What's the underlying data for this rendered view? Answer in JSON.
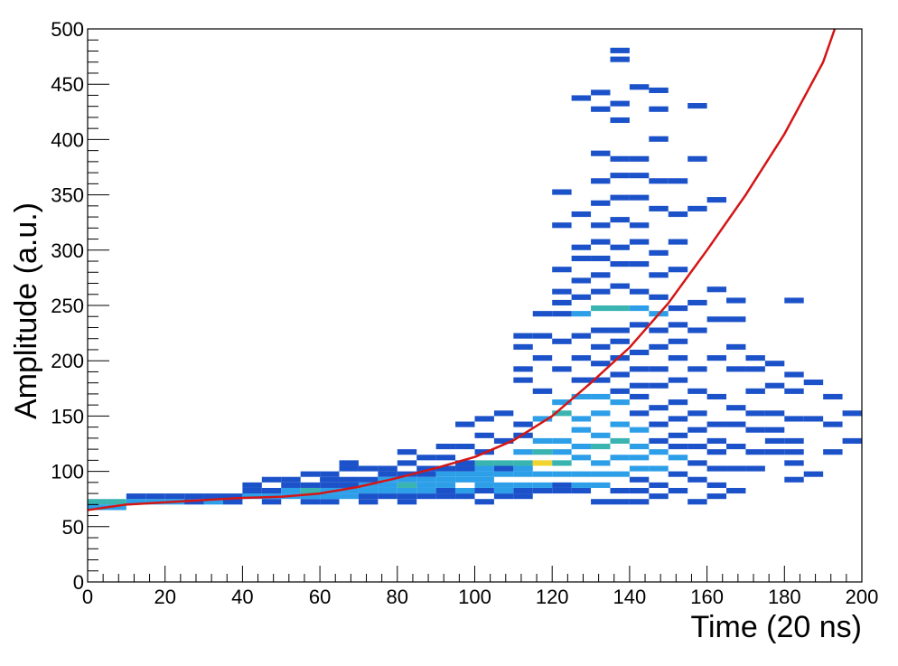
{
  "chart_data": {
    "type": "heatmap",
    "xlabel": "Time (20 ns)",
    "ylabel": "Amplitude (a.u.)",
    "xlim": [
      0,
      200
    ],
    "ylim": [
      0,
      500
    ],
    "x_ticks": [
      0,
      20,
      40,
      60,
      80,
      100,
      120,
      140,
      160,
      180,
      200
    ],
    "y_ticks": [
      0,
      50,
      100,
      150,
      200,
      250,
      300,
      350,
      400,
      450,
      500
    ],
    "bin_width_x": 5,
    "bin_width_y": 5,
    "colors": {
      "low": "#1c52c9",
      "mid": "#2d9ee8",
      "teal": "#3ab4b0",
      "high": "#c8d34a",
      "peak": "#f1d430",
      "fit": "#d41515"
    },
    "fit_curve": {
      "description": "",
      "points": [
        [
          0,
          65
        ],
        [
          10,
          70
        ],
        [
          20,
          72
        ],
        [
          30,
          74
        ],
        [
          40,
          76
        ],
        [
          50,
          77
        ],
        [
          60,
          80
        ],
        [
          70,
          86
        ],
        [
          80,
          94
        ],
        [
          90,
          103
        ],
        [
          100,
          113
        ],
        [
          110,
          128
        ],
        [
          120,
          150
        ],
        [
          130,
          180
        ],
        [
          140,
          212
        ],
        [
          150,
          252
        ],
        [
          160,
          300
        ],
        [
          170,
          350
        ],
        [
          180,
          405
        ],
        [
          190,
          470
        ],
        [
          193,
          500
        ]
      ]
    },
    "bins": [
      [
        0,
        70,
        3
      ],
      [
        5,
        70,
        3
      ],
      [
        0,
        65,
        2
      ],
      [
        5,
        65,
        2
      ],
      [
        10,
        70,
        2
      ],
      [
        10,
        75,
        1
      ],
      [
        15,
        70,
        2
      ],
      [
        15,
        75,
        1
      ],
      [
        20,
        70,
        2
      ],
      [
        20,
        75,
        1
      ],
      [
        25,
        70,
        1
      ],
      [
        25,
        75,
        1
      ],
      [
        30,
        70,
        2
      ],
      [
        30,
        75,
        1
      ],
      [
        35,
        70,
        1
      ],
      [
        35,
        75,
        1
      ],
      [
        40,
        75,
        2
      ],
      [
        40,
        80,
        1
      ],
      [
        40,
        85,
        1
      ],
      [
        45,
        70,
        1
      ],
      [
        45,
        75,
        2
      ],
      [
        45,
        80,
        1
      ],
      [
        45,
        90,
        1
      ],
      [
        50,
        75,
        2
      ],
      [
        50,
        80,
        2
      ],
      [
        50,
        85,
        1
      ],
      [
        50,
        90,
        1
      ],
      [
        55,
        70,
        1
      ],
      [
        55,
        75,
        2
      ],
      [
        55,
        80,
        3
      ],
      [
        55,
        85,
        1
      ],
      [
        55,
        95,
        1
      ],
      [
        60,
        70,
        1
      ],
      [
        60,
        75,
        2
      ],
      [
        60,
        80,
        2
      ],
      [
        60,
        85,
        1
      ],
      [
        60,
        90,
        1
      ],
      [
        60,
        95,
        1
      ],
      [
        65,
        75,
        2
      ],
      [
        65,
        80,
        2
      ],
      [
        65,
        85,
        1
      ],
      [
        65,
        90,
        1
      ],
      [
        65,
        100,
        1
      ],
      [
        65,
        105,
        1
      ],
      [
        70,
        70,
        1
      ],
      [
        70,
        75,
        1
      ],
      [
        70,
        80,
        2
      ],
      [
        70,
        85,
        2
      ],
      [
        70,
        90,
        1
      ],
      [
        70,
        100,
        1
      ],
      [
        75,
        75,
        1
      ],
      [
        75,
        80,
        2
      ],
      [
        75,
        85,
        2
      ],
      [
        75,
        90,
        2
      ],
      [
        75,
        95,
        1
      ],
      [
        75,
        100,
        1
      ],
      [
        80,
        70,
        1
      ],
      [
        80,
        75,
        1
      ],
      [
        80,
        80,
        2
      ],
      [
        80,
        85,
        3
      ],
      [
        80,
        90,
        2
      ],
      [
        80,
        95,
        1
      ],
      [
        80,
        105,
        1
      ],
      [
        80,
        115,
        1
      ],
      [
        85,
        75,
        1
      ],
      [
        85,
        80,
        2
      ],
      [
        85,
        85,
        2
      ],
      [
        85,
        90,
        2
      ],
      [
        85,
        95,
        1
      ],
      [
        85,
        100,
        1
      ],
      [
        85,
        110,
        1
      ],
      [
        90,
        75,
        1
      ],
      [
        90,
        80,
        1
      ],
      [
        90,
        85,
        2
      ],
      [
        90,
        90,
        2
      ],
      [
        90,
        95,
        2
      ],
      [
        90,
        100,
        1
      ],
      [
        90,
        110,
        1
      ],
      [
        90,
        120,
        1
      ],
      [
        95,
        75,
        1
      ],
      [
        95,
        80,
        2
      ],
      [
        95,
        90,
        2
      ],
      [
        95,
        95,
        2
      ],
      [
        95,
        100,
        1
      ],
      [
        95,
        105,
        1
      ],
      [
        95,
        120,
        1
      ],
      [
        95,
        140,
        1
      ],
      [
        100,
        70,
        1
      ],
      [
        100,
        80,
        1
      ],
      [
        100,
        85,
        2
      ],
      [
        100,
        90,
        2
      ],
      [
        100,
        95,
        2
      ],
      [
        100,
        100,
        2
      ],
      [
        100,
        105,
        3
      ],
      [
        100,
        115,
        1
      ],
      [
        100,
        130,
        1
      ],
      [
        100,
        145,
        1
      ],
      [
        105,
        75,
        1
      ],
      [
        105,
        80,
        2
      ],
      [
        105,
        85,
        2
      ],
      [
        105,
        95,
        2
      ],
      [
        105,
        100,
        1
      ],
      [
        105,
        105,
        3
      ],
      [
        105,
        125,
        1
      ],
      [
        105,
        150,
        1
      ],
      [
        110,
        75,
        1
      ],
      [
        110,
        80,
        1
      ],
      [
        110,
        85,
        2
      ],
      [
        110,
        95,
        2
      ],
      [
        110,
        100,
        2
      ],
      [
        110,
        105,
        3
      ],
      [
        110,
        115,
        2
      ],
      [
        110,
        130,
        1
      ],
      [
        110,
        140,
        1
      ],
      [
        110,
        180,
        1
      ],
      [
        110,
        190,
        1
      ],
      [
        110,
        210,
        1
      ],
      [
        110,
        220,
        1
      ],
      [
        115,
        80,
        1
      ],
      [
        115,
        85,
        2
      ],
      [
        115,
        95,
        2
      ],
      [
        115,
        105,
        4
      ],
      [
        115,
        115,
        3
      ],
      [
        115,
        125,
        2
      ],
      [
        115,
        145,
        2
      ],
      [
        115,
        170,
        1
      ],
      [
        115,
        200,
        1
      ],
      [
        115,
        220,
        1
      ],
      [
        115,
        240,
        1
      ],
      [
        120,
        80,
        1
      ],
      [
        120,
        85,
        1
      ],
      [
        120,
        95,
        2
      ],
      [
        120,
        105,
        3
      ],
      [
        120,
        115,
        2
      ],
      [
        120,
        125,
        2
      ],
      [
        120,
        150,
        3
      ],
      [
        120,
        160,
        2
      ],
      [
        120,
        190,
        1
      ],
      [
        120,
        215,
        1
      ],
      [
        120,
        240,
        1
      ],
      [
        120,
        250,
        1
      ],
      [
        120,
        260,
        1
      ],
      [
        120,
        280,
        1
      ],
      [
        120,
        320,
        1
      ],
      [
        120,
        350,
        1
      ],
      [
        125,
        80,
        1
      ],
      [
        125,
        85,
        2
      ],
      [
        125,
        95,
        2
      ],
      [
        125,
        110,
        2
      ],
      [
        125,
        120,
        2
      ],
      [
        125,
        135,
        2
      ],
      [
        125,
        145,
        2
      ],
      [
        125,
        165,
        2
      ],
      [
        125,
        180,
        1
      ],
      [
        125,
        200,
        1
      ],
      [
        125,
        220,
        1
      ],
      [
        125,
        240,
        2
      ],
      [
        125,
        255,
        1
      ],
      [
        125,
        270,
        1
      ],
      [
        125,
        290,
        1
      ],
      [
        125,
        300,
        1
      ],
      [
        125,
        330,
        1
      ],
      [
        125,
        435,
        1
      ],
      [
        130,
        70,
        1
      ],
      [
        130,
        85,
        2
      ],
      [
        130,
        95,
        2
      ],
      [
        130,
        105,
        2
      ],
      [
        130,
        120,
        3
      ],
      [
        130,
        130,
        2
      ],
      [
        130,
        150,
        2
      ],
      [
        130,
        165,
        2
      ],
      [
        130,
        180,
        1
      ],
      [
        130,
        195,
        1
      ],
      [
        130,
        210,
        1
      ],
      [
        130,
        225,
        1
      ],
      [
        130,
        245,
        3
      ],
      [
        130,
        260,
        1
      ],
      [
        130,
        275,
        1
      ],
      [
        130,
        290,
        1
      ],
      [
        130,
        305,
        1
      ],
      [
        130,
        320,
        1
      ],
      [
        130,
        340,
        1
      ],
      [
        130,
        360,
        1
      ],
      [
        130,
        385,
        1
      ],
      [
        130,
        425,
        1
      ],
      [
        130,
        440,
        1
      ],
      [
        135,
        70,
        1
      ],
      [
        135,
        80,
        1
      ],
      [
        135,
        95,
        2
      ],
      [
        135,
        110,
        2
      ],
      [
        135,
        125,
        3
      ],
      [
        135,
        140,
        2
      ],
      [
        135,
        160,
        2
      ],
      [
        135,
        170,
        1
      ],
      [
        135,
        185,
        1
      ],
      [
        135,
        200,
        1
      ],
      [
        135,
        215,
        1
      ],
      [
        135,
        225,
        1
      ],
      [
        135,
        245,
        3
      ],
      [
        135,
        265,
        1
      ],
      [
        135,
        285,
        1
      ],
      [
        135,
        300,
        1
      ],
      [
        135,
        325,
        1
      ],
      [
        135,
        345,
        1
      ],
      [
        135,
        365,
        1
      ],
      [
        135,
        380,
        1
      ],
      [
        135,
        415,
        1
      ],
      [
        135,
        430,
        1
      ],
      [
        135,
        470,
        1
      ],
      [
        135,
        478,
        1
      ],
      [
        140,
        70,
        1
      ],
      [
        140,
        80,
        1
      ],
      [
        140,
        90,
        1
      ],
      [
        140,
        100,
        2
      ],
      [
        140,
        110,
        2
      ],
      [
        140,
        120,
        2
      ],
      [
        140,
        135,
        2
      ],
      [
        140,
        150,
        1
      ],
      [
        140,
        165,
        1
      ],
      [
        140,
        175,
        1
      ],
      [
        140,
        190,
        1
      ],
      [
        140,
        205,
        1
      ],
      [
        140,
        230,
        1
      ],
      [
        140,
        245,
        2
      ],
      [
        140,
        260,
        1
      ],
      [
        140,
        285,
        1
      ],
      [
        140,
        305,
        1
      ],
      [
        140,
        320,
        1
      ],
      [
        140,
        345,
        1
      ],
      [
        140,
        365,
        1
      ],
      [
        140,
        380,
        1
      ],
      [
        140,
        445,
        1
      ],
      [
        145,
        75,
        1
      ],
      [
        145,
        85,
        1
      ],
      [
        145,
        100,
        2
      ],
      [
        145,
        115,
        2
      ],
      [
        145,
        125,
        1
      ],
      [
        145,
        140,
        1
      ],
      [
        145,
        155,
        1
      ],
      [
        145,
        175,
        1
      ],
      [
        145,
        190,
        1
      ],
      [
        145,
        210,
        1
      ],
      [
        145,
        225,
        1
      ],
      [
        145,
        240,
        2
      ],
      [
        145,
        255,
        1
      ],
      [
        145,
        275,
        1
      ],
      [
        145,
        295,
        1
      ],
      [
        145,
        335,
        1
      ],
      [
        145,
        360,
        1
      ],
      [
        145,
        398,
        1
      ],
      [
        145,
        425,
        1
      ],
      [
        145,
        442,
        1
      ],
      [
        150,
        80,
        1
      ],
      [
        150,
        95,
        1
      ],
      [
        150,
        110,
        2
      ],
      [
        150,
        120,
        1
      ],
      [
        150,
        130,
        1
      ],
      [
        150,
        145,
        1
      ],
      [
        150,
        160,
        1
      ],
      [
        150,
        180,
        1
      ],
      [
        150,
        200,
        1
      ],
      [
        150,
        215,
        1
      ],
      [
        150,
        230,
        1
      ],
      [
        150,
        245,
        1
      ],
      [
        150,
        280,
        1
      ],
      [
        150,
        305,
        1
      ],
      [
        150,
        330,
        1
      ],
      [
        150,
        360,
        1
      ],
      [
        155,
        70,
        1
      ],
      [
        155,
        90,
        1
      ],
      [
        155,
        105,
        1
      ],
      [
        155,
        120,
        1
      ],
      [
        155,
        135,
        1
      ],
      [
        155,
        150,
        1
      ],
      [
        155,
        170,
        1
      ],
      [
        155,
        190,
        1
      ],
      [
        155,
        225,
        1
      ],
      [
        155,
        250,
        1
      ],
      [
        155,
        335,
        1
      ],
      [
        155,
        380,
        1
      ],
      [
        155,
        428,
        1
      ],
      [
        160,
        75,
        1
      ],
      [
        160,
        85,
        1
      ],
      [
        160,
        100,
        1
      ],
      [
        160,
        115,
        1
      ],
      [
        160,
        125,
        1
      ],
      [
        160,
        140,
        1
      ],
      [
        160,
        165,
        1
      ],
      [
        160,
        200,
        1
      ],
      [
        160,
        235,
        1
      ],
      [
        160,
        262,
        1
      ],
      [
        160,
        343,
        1
      ],
      [
        165,
        80,
        1
      ],
      [
        165,
        100,
        1
      ],
      [
        165,
        120,
        1
      ],
      [
        165,
        140,
        1
      ],
      [
        165,
        155,
        1
      ],
      [
        165,
        190,
        1
      ],
      [
        165,
        210,
        1
      ],
      [
        165,
        235,
        1
      ],
      [
        165,
        252,
        1
      ],
      [
        170,
        100,
        1
      ],
      [
        170,
        115,
        1
      ],
      [
        170,
        135,
        1
      ],
      [
        170,
        150,
        1
      ],
      [
        170,
        170,
        1
      ],
      [
        170,
        190,
        1
      ],
      [
        170,
        200,
        1
      ],
      [
        175,
        115,
        1
      ],
      [
        175,
        125,
        1
      ],
      [
        175,
        135,
        1
      ],
      [
        175,
        150,
        1
      ],
      [
        175,
        175,
        1
      ],
      [
        175,
        195,
        1
      ],
      [
        180,
        90,
        1
      ],
      [
        180,
        105,
        1
      ],
      [
        180,
        115,
        1
      ],
      [
        180,
        125,
        1
      ],
      [
        180,
        145,
        1
      ],
      [
        180,
        170,
        1
      ],
      [
        180,
        185,
        1
      ],
      [
        180,
        252,
        1
      ],
      [
        185,
        95,
        1
      ],
      [
        185,
        145,
        1
      ],
      [
        185,
        178,
        1
      ],
      [
        190,
        115,
        1
      ],
      [
        190,
        140,
        1
      ],
      [
        190,
        165,
        1
      ],
      [
        195,
        125,
        1
      ],
      [
        195,
        150,
        1
      ],
      [
        200,
        95,
        1
      ],
      [
        200,
        130,
        1
      ]
    ]
  }
}
